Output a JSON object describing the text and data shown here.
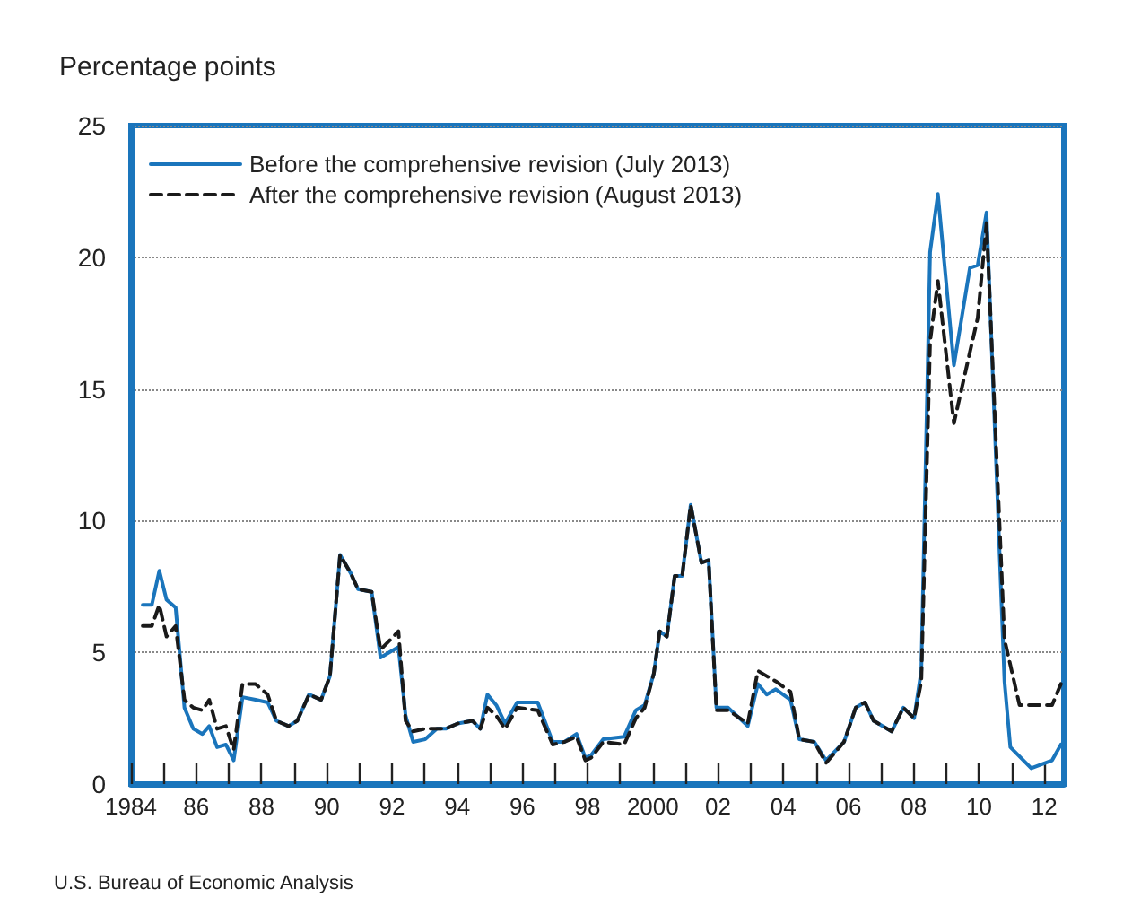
{
  "chart_data": {
    "type": "line",
    "ylabel": "Percentage points",
    "annotations": [
      "U.S. Bureau of Economic Analysis"
    ],
    "xlim": [
      1984,
      2012.6
    ],
    "xticks": [
      {
        "value": 1984,
        "label": "1984"
      },
      {
        "value": 1985,
        "label": null
      },
      {
        "value": 1986,
        "label": "86"
      },
      {
        "value": 1987,
        "label": null
      },
      {
        "value": 1988,
        "label": "88"
      },
      {
        "value": 1989,
        "label": null
      },
      {
        "value": 1990,
        "label": "90"
      },
      {
        "value": 1991,
        "label": null
      },
      {
        "value": 1992,
        "label": "92"
      },
      {
        "value": 1993,
        "label": null
      },
      {
        "value": 1994,
        "label": "94"
      },
      {
        "value": 1995,
        "label": null
      },
      {
        "value": 1996,
        "label": "96"
      },
      {
        "value": 1997,
        "label": null
      },
      {
        "value": 1998,
        "label": "98"
      },
      {
        "value": 1999,
        "label": null
      },
      {
        "value": 2000,
        "label": "2000"
      },
      {
        "value": 2001,
        "label": null
      },
      {
        "value": 2002,
        "label": "02"
      },
      {
        "value": 2003,
        "label": null
      },
      {
        "value": 2004,
        "label": "04"
      },
      {
        "value": 2005,
        "label": null
      },
      {
        "value": 2006,
        "label": "06"
      },
      {
        "value": 2007,
        "label": null
      },
      {
        "value": 2008,
        "label": "08"
      },
      {
        "value": 2009,
        "label": null
      },
      {
        "value": 2010,
        "label": "10"
      },
      {
        "value": 2011,
        "label": null
      },
      {
        "value": 2012,
        "label": "12"
      }
    ],
    "ylim": [
      0,
      25
    ],
    "yticks": [
      0,
      5,
      10,
      15,
      20,
      25
    ],
    "grid": "y",
    "legend": "top left",
    "marker": "none",
    "series": [
      {
        "name": "Before the comprehensive revision (July 2013)",
        "color": "#1a75bc",
        "line_style": "solid",
        "x": [
          1984.36,
          1984.64,
          1984.87,
          1985.09,
          1985.37,
          1985.64,
          1985.91,
          1986.19,
          1986.4,
          1986.64,
          1986.91,
          1987.15,
          1987.42,
          1987.82,
          1988.19,
          1988.46,
          1988.83,
          1989.1,
          1989.46,
          1989.83,
          1990.1,
          1990.41,
          1990.74,
          1990.96,
          1991.38,
          1991.65,
          1992.2,
          1992.42,
          1992.65,
          1993.02,
          1993.38,
          1993.65,
          1994.02,
          1994.47,
          1994.71,
          1994.93,
          1995.2,
          1995.47,
          1995.84,
          1996.47,
          1996.93,
          1997.29,
          1997.66,
          1997.93,
          1998.11,
          1998.48,
          1999.12,
          1999.48,
          1999.75,
          2000.03,
          2000.21,
          2000.43,
          2000.67,
          2000.9,
          2001.16,
          2001.49,
          2001.71,
          2001.95,
          2002.31,
          2002.91,
          2003.22,
          2003.49,
          2003.77,
          2004.22,
          2004.49,
          2004.95,
          2005.31,
          2005.86,
          2006.22,
          2006.5,
          2006.77,
          2007.32,
          2007.68,
          2008.01,
          2008.23,
          2008.5,
          2008.74,
          2009.23,
          2009.72,
          2009.96,
          2010.23,
          2010.78,
          2010.96,
          2011.6,
          2012.24,
          2012.51
        ],
        "values": [
          6.8,
          6.8,
          8.1,
          7.0,
          6.7,
          2.9,
          2.1,
          1.9,
          2.2,
          1.4,
          1.5,
          0.9,
          3.3,
          3.2,
          3.1,
          2.4,
          2.2,
          2.4,
          3.4,
          3.2,
          4.1,
          8.7,
          8.0,
          7.4,
          7.3,
          4.8,
          5.2,
          2.6,
          1.6,
          1.7,
          2.1,
          2.1,
          2.3,
          2.4,
          2.1,
          3.4,
          3.0,
          2.3,
          3.1,
          3.1,
          1.6,
          1.6,
          1.9,
          1.0,
          1.1,
          1.7,
          1.8,
          2.8,
          3.0,
          4.2,
          5.8,
          5.6,
          7.9,
          7.9,
          10.6,
          8.4,
          8.5,
          2.9,
          2.9,
          2.2,
          3.8,
          3.4,
          3.6,
          3.2,
          1.7,
          1.6,
          0.9,
          1.6,
          2.9,
          3.1,
          2.4,
          2.0,
          2.9,
          2.5,
          4.3,
          20.2,
          22.4,
          15.9,
          19.6,
          19.7,
          21.7,
          3.9,
          1.4,
          0.6,
          0.9,
          1.5
        ]
      },
      {
        "name": "After the comprehensive revision (August 2013)",
        "color": "#1a1a1a",
        "line_style": "dashed",
        "x": [
          1984.36,
          1984.64,
          1984.87,
          1985.09,
          1985.37,
          1985.64,
          1985.91,
          1986.19,
          1986.4,
          1986.64,
          1986.91,
          1987.15,
          1987.42,
          1987.82,
          1988.19,
          1988.46,
          1988.83,
          1989.1,
          1989.46,
          1989.83,
          1990.1,
          1990.41,
          1990.74,
          1990.96,
          1991.38,
          1991.65,
          1992.2,
          1992.42,
          1992.65,
          1993.02,
          1993.38,
          1993.65,
          1994.02,
          1994.47,
          1994.71,
          1994.93,
          1995.2,
          1995.47,
          1995.84,
          1996.47,
          1996.93,
          1997.29,
          1997.66,
          1997.93,
          1998.11,
          1998.48,
          1999.12,
          1999.48,
          1999.75,
          2000.03,
          2000.21,
          2000.43,
          2000.67,
          2000.9,
          2001.16,
          2001.49,
          2001.71,
          2001.95,
          2002.31,
          2002.91,
          2003.22,
          2003.49,
          2003.77,
          2004.22,
          2004.49,
          2004.95,
          2005.31,
          2005.86,
          2006.22,
          2006.5,
          2006.77,
          2007.32,
          2007.68,
          2008.01,
          2008.23,
          2008.5,
          2008.74,
          2009.23,
          2009.72,
          2009.96,
          2010.23,
          2010.78,
          2011.24,
          2011.69,
          2012.24,
          2012.51
        ],
        "values": [
          6.0,
          6.0,
          6.8,
          5.6,
          6.0,
          3.2,
          2.9,
          2.8,
          3.2,
          2.1,
          2.2,
          1.3,
          3.8,
          3.8,
          3.4,
          2.4,
          2.2,
          2.4,
          3.4,
          3.2,
          4.1,
          8.7,
          8.0,
          7.4,
          7.3,
          5.1,
          5.8,
          2.4,
          2.0,
          2.1,
          2.1,
          2.1,
          2.3,
          2.4,
          2.1,
          2.9,
          2.6,
          2.1,
          2.9,
          2.8,
          1.5,
          1.6,
          1.8,
          0.9,
          1.0,
          1.6,
          1.5,
          2.5,
          2.9,
          4.2,
          5.8,
          5.6,
          7.9,
          7.9,
          10.6,
          8.4,
          8.5,
          2.8,
          2.8,
          2.3,
          4.3,
          4.1,
          3.9,
          3.5,
          1.7,
          1.6,
          0.8,
          1.6,
          2.9,
          3.1,
          2.4,
          2.0,
          2.9,
          2.5,
          3.9,
          16.8,
          19.1,
          13.7,
          16.4,
          17.7,
          21.3,
          5.5,
          3.0,
          3.0,
          3.0,
          3.8
        ]
      }
    ]
  }
}
